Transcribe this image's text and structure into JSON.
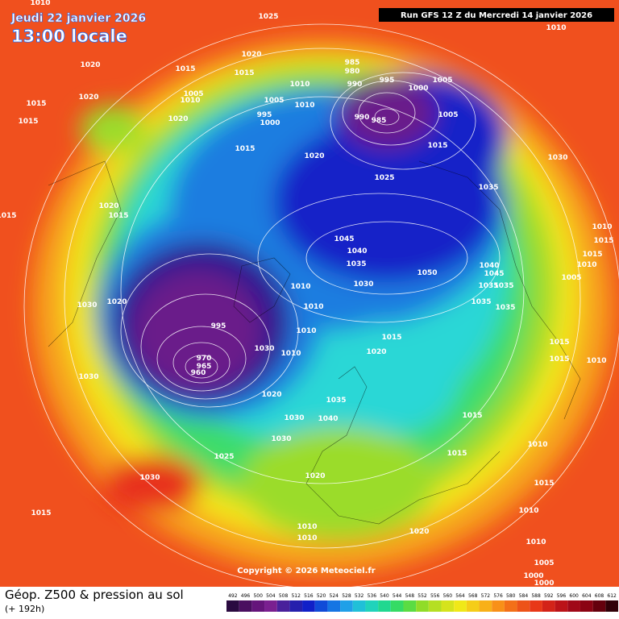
{
  "header": {
    "date": "Jeudi 22 janvier 2026",
    "time": "13:00 locale",
    "run": "Run GFS 12 Z du Mercredi 14 janvier 2026"
  },
  "map": {
    "copyright": "Copyright © 2026 Meteociel.fr",
    "isobar_labels": [
      "1010",
      "1025",
      "1010",
      "1020",
      "1015",
      "1015",
      "1020",
      "1015",
      "1020",
      "1015",
      "1005",
      "1010",
      "985",
      "980",
      "990",
      "995",
      "1000",
      "1005",
      "1010",
      "1005",
      "1010",
      "995",
      "1000",
      "990",
      "985",
      "1005",
      "1015",
      "1030",
      "1020",
      "1015",
      "1020",
      "1025",
      "1035",
      "1020",
      "1015",
      "1015",
      "1010",
      "1015",
      "1015",
      "1010",
      "1045",
      "1040",
      "1035",
      "1050",
      "1040",
      "1045",
      "1035",
      "1035",
      "1005",
      "1030",
      "1010",
      "1030",
      "1020",
      "1035",
      "1035",
      "1010",
      "995",
      "1010",
      "1015",
      "1030",
      "1010",
      "1020",
      "1015",
      "1015",
      "1010",
      "1030",
      "1020",
      "1035",
      "1040",
      "1030",
      "1015",
      "1030",
      "1010",
      "1025",
      "1015",
      "1030",
      "1020",
      "1015",
      "1015",
      "1010",
      "1010",
      "1010",
      "1020",
      "1010",
      "1005",
      "1000",
      "1000",
      "970",
      "965",
      "960"
    ]
  },
  "footer": {
    "title": "Géop. Z500 & pression au sol",
    "subtitle": "(+ 192h)"
  },
  "legend": {
    "values": [
      492,
      496,
      500,
      504,
      508,
      512,
      516,
      520,
      524,
      528,
      532,
      536,
      540,
      544,
      548,
      552,
      556,
      560,
      564,
      568,
      572,
      576,
      580,
      584,
      588,
      592,
      596,
      600,
      604,
      608,
      612
    ]
  }
}
